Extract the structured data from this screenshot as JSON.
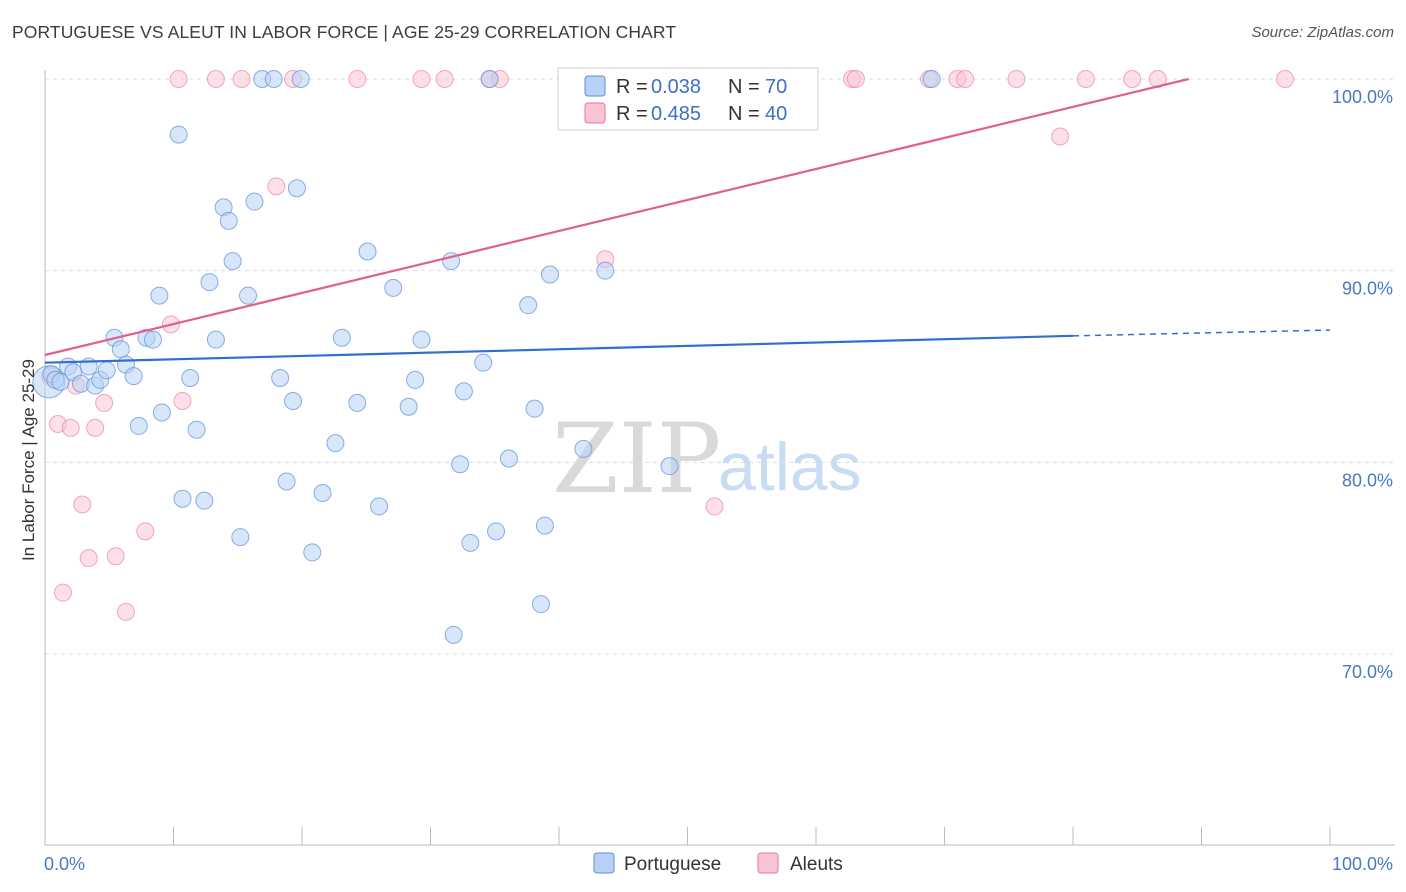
{
  "title": "PORTUGUESE VS ALEUT IN LABOR FORCE | AGE 25-29 CORRELATION CHART",
  "source": "Source: ZipAtlas.com",
  "watermark": {
    "zip": "ZIP",
    "atlas": "atlas"
  },
  "colors": {
    "portuguese": "#5b8fd9",
    "aleut": "#e8759a",
    "portuguese_fill": "#b8d2f5",
    "aleut_fill": "#f9c4d4",
    "axis_text": "#4a78c2"
  },
  "legend": {
    "rows": [
      {
        "r_label": "R =",
        "r_value": "0.038",
        "n_label": "N =",
        "n_value": "70"
      },
      {
        "r_label": "R =",
        "r_value": "0.485",
        "n_label": "N =",
        "n_value": "40"
      }
    ]
  },
  "chart_data": {
    "type": "scatter",
    "title": "PORTUGUESE VS ALEUT IN LABOR FORCE | AGE 25-29 CORRELATION CHART",
    "xlabel": "",
    "ylabel": "In Labor Force | Age 25-29",
    "x_tick_labels": [
      "0.0%",
      "100.0%"
    ],
    "y_tick_labels": [
      "100.0%",
      "90.0%",
      "80.0%",
      "70.0%"
    ],
    "y_ticks": [
      100,
      90,
      80,
      70
    ],
    "xlim": [
      0,
      100
    ],
    "ylim": [
      60,
      103
    ],
    "grid": true,
    "legend_position": "bottom",
    "series": [
      {
        "name": "Portuguese",
        "points": [
          [
            0.3,
            84.2
          ],
          [
            0.5,
            84.6
          ],
          [
            0.8,
            84.3
          ],
          [
            1.2,
            84.2
          ],
          [
            1.8,
            85.0
          ],
          [
            2.2,
            84.7
          ],
          [
            2.8,
            84.1
          ],
          [
            3.4,
            85.0
          ],
          [
            3.9,
            84.0
          ],
          [
            4.3,
            84.3
          ],
          [
            4.8,
            84.8
          ],
          [
            5.4,
            86.5
          ],
          [
            5.9,
            85.9
          ],
          [
            6.3,
            85.1
          ],
          [
            6.9,
            84.5
          ],
          [
            7.3,
            81.9
          ],
          [
            7.9,
            86.5
          ],
          [
            8.4,
            86.4
          ],
          [
            8.9,
            88.7
          ],
          [
            9.1,
            82.6
          ],
          [
            10.4,
            97.1
          ],
          [
            10.7,
            78.1
          ],
          [
            11.3,
            84.4
          ],
          [
            11.8,
            81.7
          ],
          [
            12.4,
            78.0
          ],
          [
            12.8,
            89.4
          ],
          [
            13.3,
            86.4
          ],
          [
            13.9,
            93.3
          ],
          [
            14.3,
            92.6
          ],
          [
            14.6,
            90.5
          ],
          [
            15.2,
            76.1
          ],
          [
            15.8,
            88.7
          ],
          [
            16.3,
            93.6
          ],
          [
            16.9,
            100
          ],
          [
            17.8,
            100
          ],
          [
            18.3,
            84.4
          ],
          [
            18.8,
            79.0
          ],
          [
            19.3,
            83.2
          ],
          [
            19.6,
            94.3
          ],
          [
            19.9,
            100
          ],
          [
            20.8,
            75.3
          ],
          [
            21.6,
            78.4
          ],
          [
            22.6,
            81.0
          ],
          [
            23.1,
            86.5
          ],
          [
            24.3,
            83.1
          ],
          [
            25.1,
            91.0
          ],
          [
            26.0,
            77.7
          ],
          [
            27.1,
            89.1
          ],
          [
            28.3,
            82.9
          ],
          [
            28.8,
            84.3
          ],
          [
            29.3,
            86.4
          ],
          [
            31.6,
            90.5
          ],
          [
            31.8,
            71.0
          ],
          [
            32.3,
            79.9
          ],
          [
            32.6,
            83.7
          ],
          [
            33.1,
            75.8
          ],
          [
            34.1,
            85.2
          ],
          [
            34.6,
            100
          ],
          [
            35.1,
            76.4
          ],
          [
            36.1,
            80.2
          ],
          [
            37.6,
            88.2
          ],
          [
            38.1,
            82.8
          ],
          [
            38.6,
            72.6
          ],
          [
            38.9,
            76.7
          ],
          [
            39.3,
            89.8
          ],
          [
            41.9,
            80.7
          ],
          [
            43.6,
            90.0
          ],
          [
            48.6,
            79.8
          ],
          [
            69.0,
            100
          ],
          [
            54.0,
            100
          ]
        ]
      },
      {
        "name": "Aleuts",
        "points": [
          [
            0.4,
            84.5
          ],
          [
            1.0,
            82.0
          ],
          [
            1.4,
            73.2
          ],
          [
            2.0,
            81.8
          ],
          [
            2.4,
            84.0
          ],
          [
            2.9,
            77.8
          ],
          [
            3.4,
            75.0
          ],
          [
            3.9,
            81.8
          ],
          [
            4.6,
            83.1
          ],
          [
            5.5,
            75.1
          ],
          [
            6.3,
            72.2
          ],
          [
            7.8,
            76.4
          ],
          [
            9.8,
            87.2
          ],
          [
            10.7,
            83.2
          ],
          [
            10.4,
            100
          ],
          [
            13.3,
            100
          ],
          [
            15.3,
            100
          ],
          [
            18.0,
            94.4
          ],
          [
            19.3,
            100
          ],
          [
            24.3,
            100
          ],
          [
            29.3,
            100
          ],
          [
            31.1,
            100
          ],
          [
            34.6,
            100
          ],
          [
            35.4,
            100
          ],
          [
            43.6,
            90.6
          ],
          [
            50.1,
            100
          ],
          [
            51.6,
            100
          ],
          [
            52.1,
            77.7
          ],
          [
            59.0,
            100
          ],
          [
            62.8,
            100
          ],
          [
            63.1,
            100
          ],
          [
            68.8,
            100
          ],
          [
            71.0,
            100
          ],
          [
            71.6,
            100
          ],
          [
            75.6,
            100
          ],
          [
            79.0,
            97.0
          ],
          [
            81.0,
            100
          ],
          [
            84.6,
            100
          ],
          [
            86.6,
            100
          ],
          [
            96.5,
            100
          ]
        ]
      }
    ],
    "trendlines": [
      {
        "series": "Portuguese",
        "from": [
          0,
          85.2
        ],
        "to": [
          80,
          86.6
        ],
        "dashed_to": [
          100,
          86.9
        ]
      },
      {
        "series": "Aleuts",
        "from": [
          0,
          85.6
        ],
        "to": [
          89,
          100
        ]
      }
    ]
  },
  "bottom_legend": [
    {
      "label": "Portuguese"
    },
    {
      "label": "Aleuts"
    }
  ]
}
